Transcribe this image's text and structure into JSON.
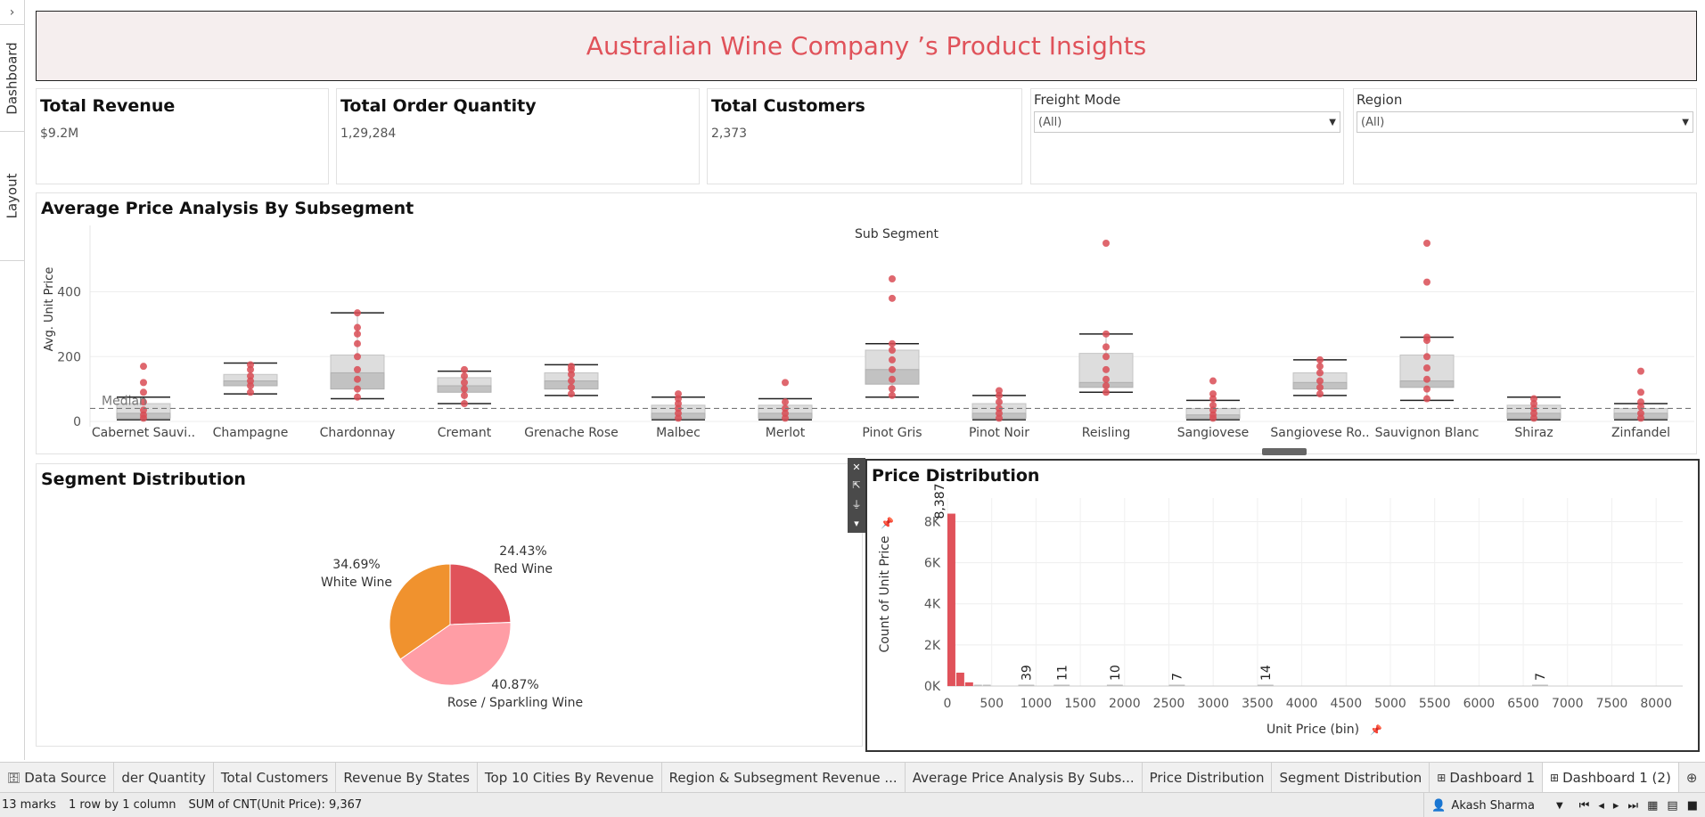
{
  "rail": {
    "arrow": "›",
    "dashboard_tab": "Dashboard",
    "layout_tab": "Layout"
  },
  "title": "Australian Wine Company ’s Product Insights",
  "kpis": [
    {
      "title": "Total Revenue",
      "value": "$9.2M"
    },
    {
      "title": "Total Order Quantity",
      "value": "1,29,284"
    },
    {
      "title": "Total Customers",
      "value": "2,373"
    }
  ],
  "filters": [
    {
      "label": "Freight Mode",
      "value": "(All)"
    },
    {
      "label": "Region",
      "value": "(All)"
    }
  ],
  "colors": {
    "accent": "#e0525a",
    "white_wine": "#f0922e",
    "red_wine": "#e0525a",
    "rose": "#ff9da5"
  },
  "box_chart": {
    "title": "Average Price Analysis By Subsegment",
    "column_header": "Sub Segment",
    "ylabel": "Avg. Unit Price",
    "median_label": "Median",
    "chart_data": {
      "type": "box",
      "ylim": [
        0,
        550
      ],
      "yticks": [
        "0",
        "200",
        "400"
      ],
      "median_line": 40,
      "categories": [
        "Cabernet Sauvi..",
        "Champagne",
        "Chardonnay",
        "Cremant",
        "Grenache Rose",
        "Malbec",
        "Merlot",
        "Pinot Gris",
        "Pinot Noir",
        "Reisling",
        "Sangiovese",
        "Sangiovese Ro..",
        "Sauvignon Blanc",
        "Shiraz",
        "Zinfandel"
      ],
      "boxes": [
        {
          "low": 5,
          "q1": 10,
          "median": 25,
          "q3": 55,
          "high": 75,
          "points": [
            10,
            20,
            35,
            60,
            90,
            120,
            170
          ]
        },
        {
          "low": 85,
          "q1": 110,
          "median": 125,
          "q3": 145,
          "high": 180,
          "points": [
            90,
            110,
            125,
            140,
            160,
            175
          ]
        },
        {
          "low": 70,
          "q1": 100,
          "median": 150,
          "q3": 205,
          "high": 335,
          "points": [
            75,
            100,
            130,
            160,
            200,
            240,
            270,
            290,
            335
          ]
        },
        {
          "low": 55,
          "q1": 90,
          "median": 110,
          "q3": 135,
          "high": 155,
          "points": [
            55,
            80,
            100,
            120,
            140,
            160
          ]
        },
        {
          "low": 80,
          "q1": 100,
          "median": 125,
          "q3": 150,
          "high": 175,
          "points": [
            85,
            105,
            125,
            145,
            160,
            170
          ]
        },
        {
          "low": 5,
          "q1": 10,
          "median": 25,
          "q3": 50,
          "high": 75,
          "points": [
            10,
            25,
            40,
            55,
            70,
            85
          ]
        },
        {
          "low": 5,
          "q1": 10,
          "median": 25,
          "q3": 50,
          "high": 70,
          "points": [
            10,
            25,
            40,
            60,
            120
          ]
        },
        {
          "low": 75,
          "q1": 115,
          "median": 160,
          "q3": 220,
          "high": 240,
          "points": [
            80,
            100,
            130,
            160,
            190,
            220,
            240,
            380,
            440
          ]
        },
        {
          "low": 5,
          "q1": 10,
          "median": 25,
          "q3": 55,
          "high": 80,
          "points": [
            10,
            25,
            40,
            60,
            80,
            95
          ]
        },
        {
          "low": 90,
          "q1": 105,
          "median": 120,
          "q3": 210,
          "high": 270,
          "points": [
            90,
            110,
            130,
            160,
            200,
            230,
            270,
            550
          ]
        },
        {
          "low": 5,
          "q1": 10,
          "median": 20,
          "q3": 40,
          "high": 65,
          "points": [
            10,
            20,
            35,
            50,
            70,
            85,
            125
          ]
        },
        {
          "low": 80,
          "q1": 100,
          "median": 120,
          "q3": 150,
          "high": 190,
          "points": [
            85,
            105,
            125,
            150,
            170,
            190
          ]
        },
        {
          "low": 65,
          "q1": 105,
          "median": 125,
          "q3": 205,
          "high": 260,
          "points": [
            70,
            100,
            130,
            165,
            200,
            250,
            260,
            430,
            550
          ]
        },
        {
          "low": 5,
          "q1": 10,
          "median": 25,
          "q3": 50,
          "high": 75,
          "points": [
            10,
            25,
            40,
            55,
            70
          ]
        },
        {
          "low": 5,
          "q1": 10,
          "median": 25,
          "q3": 40,
          "high": 55,
          "points": [
            10,
            25,
            45,
            60,
            90,
            155
          ]
        }
      ]
    }
  },
  "seg_chart": {
    "title": "Segment Distribution",
    "chart_data": {
      "type": "pie",
      "slices": [
        {
          "label": "Red Wine",
          "pct": "24.43%",
          "value": 24.43,
          "color": "#e0525a"
        },
        {
          "label": "Rose / Sparkling Wine",
          "pct": "40.87%",
          "value": 40.87,
          "color": "#ff9da5"
        },
        {
          "label": "White Wine",
          "pct": "34.69%",
          "value": 34.69,
          "color": "#f0922e"
        }
      ]
    }
  },
  "price_chart": {
    "title": "Price Distribution",
    "ylabel": "Count of Unit Price",
    "xlabel": "Unit Price (bin)",
    "chart_data": {
      "type": "bar",
      "xlim": [
        0,
        8300
      ],
      "ylim": [
        0,
        8800
      ],
      "xticks": [
        "0",
        "500",
        "1000",
        "1500",
        "2000",
        "2500",
        "3000",
        "3500",
        "4000",
        "4500",
        "5000",
        "5500",
        "6000",
        "6500",
        "7000",
        "7500",
        "8000"
      ],
      "yticks": [
        "0K",
        "2K",
        "4K",
        "6K",
        "8K"
      ],
      "bins": [
        {
          "x": 0,
          "value": 8387,
          "label": "8,387"
        },
        {
          "x": 100,
          "value": 650
        },
        {
          "x": 200,
          "value": 180
        },
        {
          "x": 300,
          "value": 60
        },
        {
          "x": 400,
          "value": 25
        },
        {
          "x": 800,
          "value": 39,
          "label": "39"
        },
        {
          "x": 1200,
          "value": 11,
          "label": "11"
        },
        {
          "x": 1800,
          "value": 10,
          "label": "10"
        },
        {
          "x": 2500,
          "value": 7,
          "label": "7"
        },
        {
          "x": 3500,
          "value": 14,
          "label": "14"
        },
        {
          "x": 6600,
          "value": 7,
          "label": "7"
        }
      ]
    }
  },
  "tabs": [
    {
      "label": "Data Source",
      "icon": "database-icon"
    },
    {
      "label": "der Quantity"
    },
    {
      "label": "Total Customers"
    },
    {
      "label": "Revenue By States"
    },
    {
      "label": "Top 10 Cities By Revenue"
    },
    {
      "label": "Region & Subsegment Revenue ..."
    },
    {
      "label": "Average Price Analysis By Subs..."
    },
    {
      "label": "Price Distribution"
    },
    {
      "label": "Segment Distribution"
    },
    {
      "label": "Dashboard 1",
      "icon": "grid-icon"
    },
    {
      "label": "Dashboard 1 (2)",
      "icon": "grid-icon",
      "active": true
    }
  ],
  "status": {
    "marks": "13 marks",
    "rows": "1 row by 1 column",
    "sum": "SUM of CNT(Unit Price): 9,367",
    "user": "Akash Sharma"
  }
}
